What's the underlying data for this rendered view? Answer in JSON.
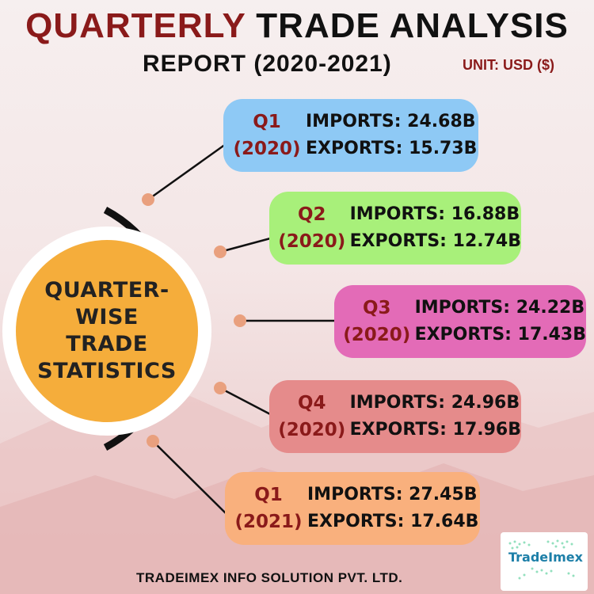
{
  "header": {
    "title_part1": "QUARTERLY",
    "title_part2": "TRADE ANALYSIS",
    "subtitle": "REPORT (2020-2021)",
    "unit": "UNIT: USD ($)"
  },
  "hub": {
    "line1": "QUARTER-WISE",
    "line2": "TRADE",
    "line3": "STATISTICS"
  },
  "cards": [
    {
      "quarter": "Q1",
      "year": "(2020)",
      "imports": "IMPORTS: 24.68B",
      "exports": "EXPORTS: 15.73B"
    },
    {
      "quarter": "Q2",
      "year": "(2020)",
      "imports": "IMPORTS: 16.88B",
      "exports": "EXPORTS: 12.74B"
    },
    {
      "quarter": "Q3",
      "year": "(2020)",
      "imports": "IMPORTS: 24.22B",
      "exports": "EXPORTS: 17.43B"
    },
    {
      "quarter": "Q4",
      "year": "(2020)",
      "imports": "IMPORTS: 24.96B",
      "exports": "EXPORTS: 17.96B"
    },
    {
      "quarter": "Q1",
      "year": "(2021)",
      "imports": "IMPORTS: 27.45B",
      "exports": "EXPORTS: 17.64B"
    }
  ],
  "footer": {
    "company": "TRADEIMEX INFO SOLUTION PVT. LTD."
  },
  "logo": {
    "text": "TradeImex"
  },
  "colors": {
    "title_accent": "#8a1a1a",
    "hub_fill": "#f5ad3b",
    "card_q1_2020": "#8ec9f5",
    "card_q2_2020": "#a8f07a",
    "card_q3_2020": "#e36bb7",
    "card_q4_2020": "#e58b8b",
    "card_q1_2021": "#f9b07d",
    "connector_dot": "#e9a07e"
  },
  "chart_data": {
    "type": "table",
    "title": "QUARTERLY TRADE ANALYSIS REPORT (2020-2021)",
    "unit": "UNIT: USD ($)",
    "categories": [
      "Q1 (2020)",
      "Q2 (2020)",
      "Q3 (2020)",
      "Q4 (2020)",
      "Q1 (2021)"
    ],
    "series": [
      {
        "name": "IMPORTS",
        "values": [
          24.68,
          16.88,
          24.22,
          24.96,
          27.45
        ]
      },
      {
        "name": "EXPORTS",
        "values": [
          15.73,
          12.74,
          17.43,
          17.96,
          17.64
        ]
      }
    ]
  }
}
